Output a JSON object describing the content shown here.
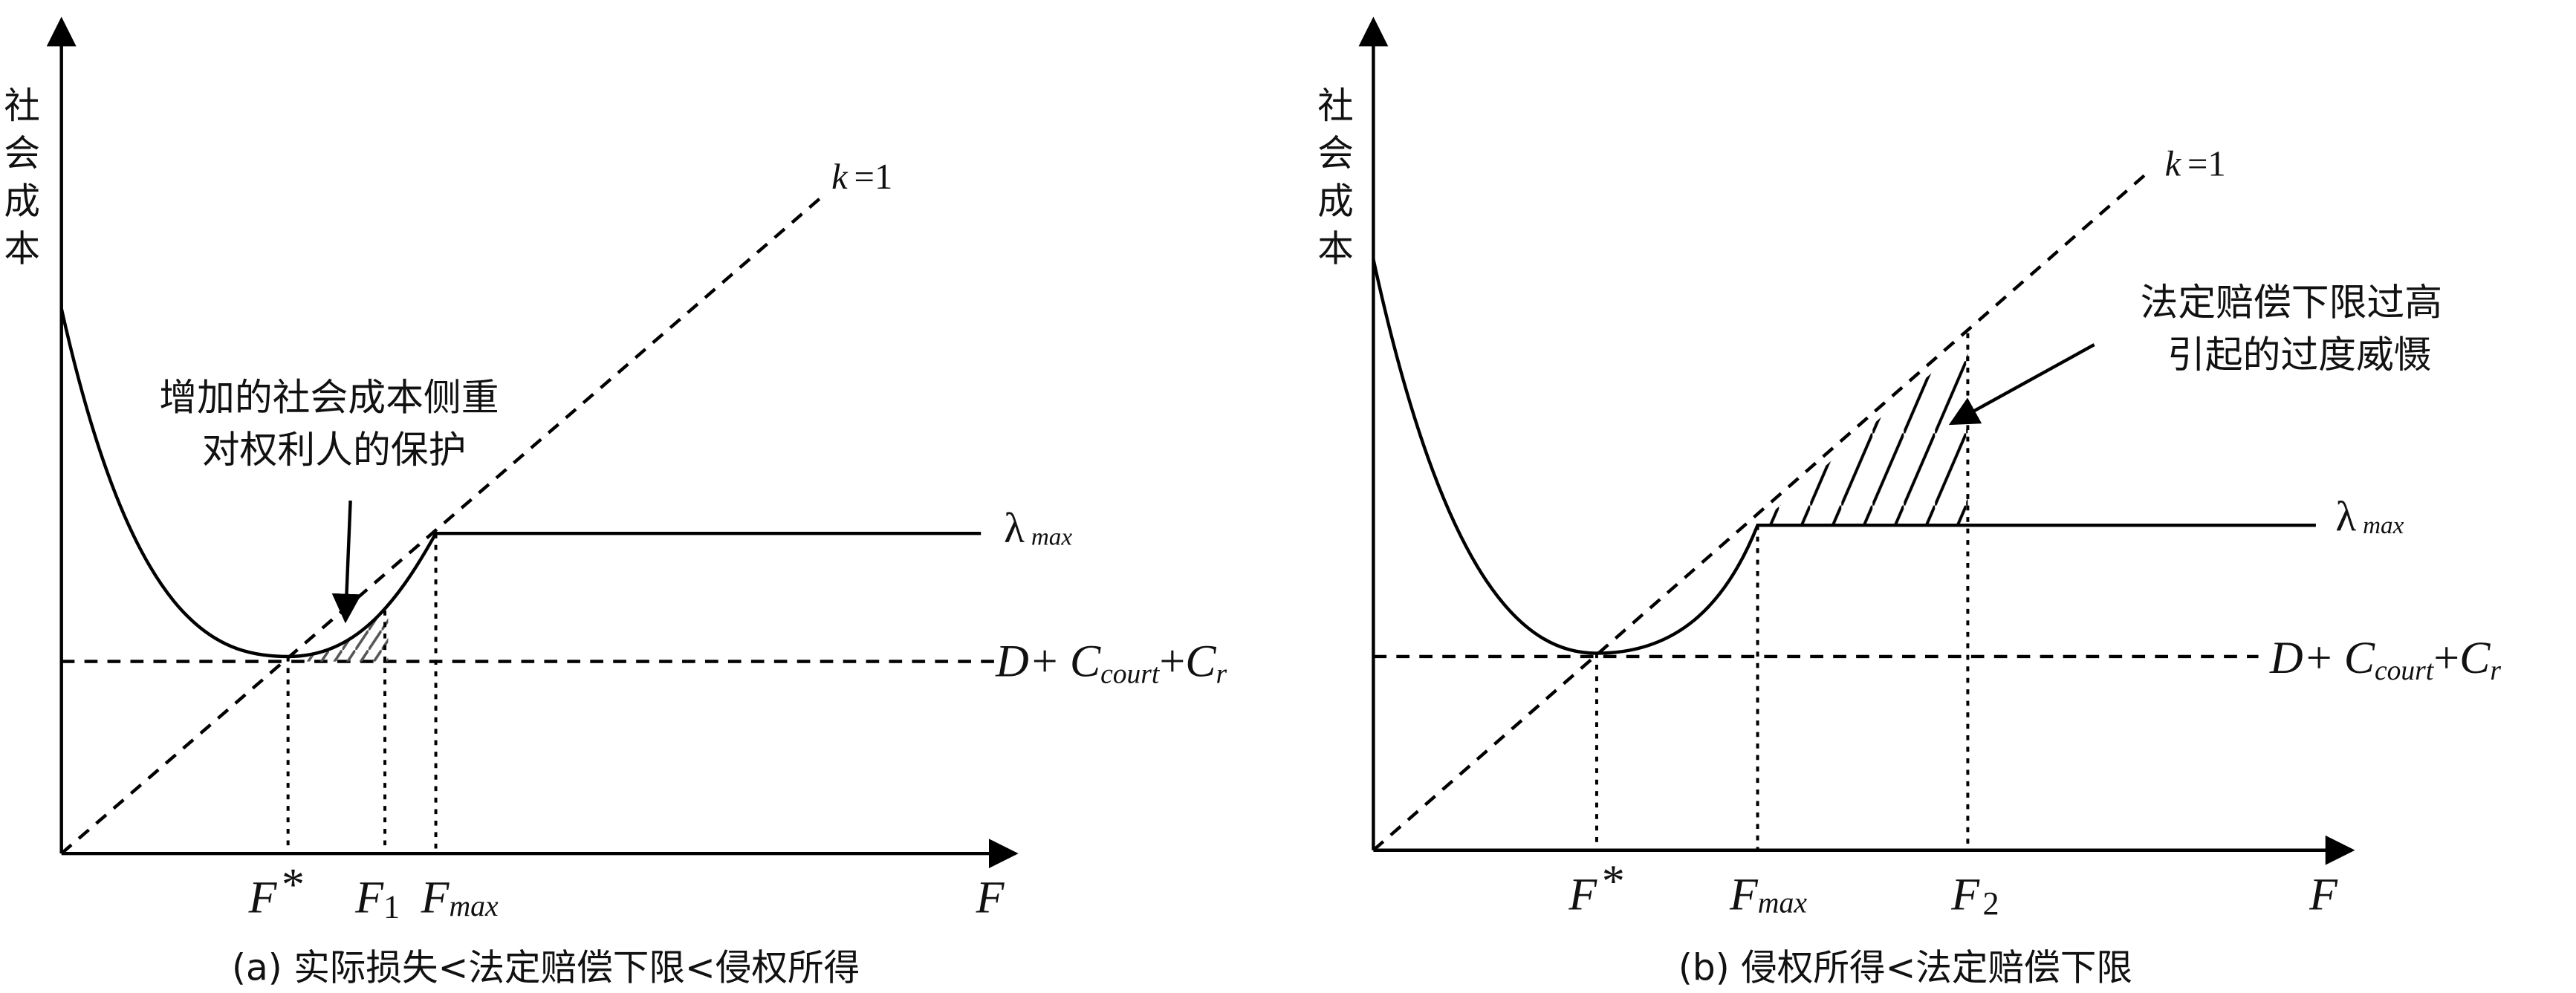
{
  "panels": [
    {
      "y_axis_label": [
        "社",
        "会",
        "成",
        "本"
      ],
      "x_axis_label": "F",
      "diagonal_label": {
        "var": "k",
        "rest": "=1"
      },
      "lambda_label": {
        "symbol": "λ",
        "sub": "max"
      },
      "cost_label": {
        "d": "D+",
        "c1": "C",
        "c1_sub": "court",
        "plus": "+",
        "c2": "C",
        "c2_sub": "r"
      },
      "x_ticks": [
        {
          "main": "F",
          "mark": "*"
        },
        {
          "main": "F",
          "mark": "1"
        },
        {
          "main": "F",
          "mark": "max"
        }
      ],
      "annotation": [
        "增加的社会成本侧重",
        "对权利人的保护"
      ],
      "caption": "(a) 实际损失<法定赔偿下限<侵权所得"
    },
    {
      "y_axis_label": [
        "社",
        "会",
        "成",
        "本"
      ],
      "x_axis_label": "F",
      "diagonal_label": {
        "var": "k",
        "rest": "=1"
      },
      "lambda_label": {
        "symbol": "λ",
        "sub": "max"
      },
      "cost_label": {
        "d": "D+",
        "c1": "C",
        "c1_sub": "court",
        "plus": "+",
        "c2": "C",
        "c2_sub": "r"
      },
      "x_ticks": [
        {
          "main": "F",
          "mark": "*"
        },
        {
          "main": "F",
          "mark": "max"
        },
        {
          "main": "F",
          "mark": "2"
        }
      ],
      "annotation": [
        "法定赔偿下限过高",
        "引起的过度威慑"
      ],
      "caption": "(b) 侵权所得<法定赔偿下限"
    }
  ]
}
